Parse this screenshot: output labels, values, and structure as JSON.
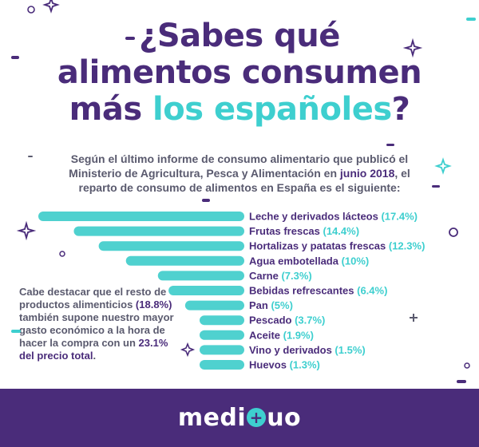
{
  "title": {
    "line1": "¿Sabes qué",
    "line2": "alimentos consumen",
    "line3_a": "más ",
    "line3_b": "los españoles",
    "line3_c": "?"
  },
  "intro": {
    "text_a": "Según el último informe de consumo alimentario que publicó el Ministerio de Agricultura, Pesca y Alimentación en ",
    "highlight": "junio 2018",
    "text_b": ", el reparto de consumo de alimentos en España es el siguiente:"
  },
  "side_note": {
    "text_a": "Cabe destacar que el resto de productos alimenticios ",
    "highlight1": "(18.8%)",
    "text_b": " también supone nuestro mayor gasto económico a la hora de hacer la compra con un ",
    "highlight2": "23.1% del precio total",
    "text_c": "."
  },
  "footer": {
    "brand_a": "medi",
    "brand_plus": "+",
    "brand_b": "uo"
  },
  "colors": {
    "bar": "#4fd1cf",
    "label": "#4a2c7a",
    "value": "#3ecfcf",
    "accent": "#3ecfcf",
    "purple": "#4a2c7a"
  },
  "chart_data": {
    "type": "bar",
    "orientation": "horizontal",
    "categories": [
      "Leche y derivados lácteos",
      "Frutas frescas",
      "Hortalizas y patatas frescas",
      "Agua embotellada",
      "Carne",
      "Bebidas refrescantes",
      "Pan",
      "Pescado",
      "Aceite",
      "Vino y derivados",
      "Huevos"
    ],
    "values": [
      17.4,
      14.4,
      12.3,
      10,
      7.3,
      6.4,
      5,
      3.7,
      1.9,
      1.5,
      1.3
    ],
    "value_labels": [
      "(17.4%)",
      "(14.4%)",
      "(12.3%)",
      "(10%)",
      "(7.3%)",
      "(6.4%)",
      "(5%)",
      "(3.7%)",
      "(1.9%)",
      "(1.5%)",
      "(1.3%)"
    ],
    "unit": "%",
    "title": "",
    "xlabel": "",
    "ylabel": "",
    "grid": false,
    "legend": "none"
  }
}
